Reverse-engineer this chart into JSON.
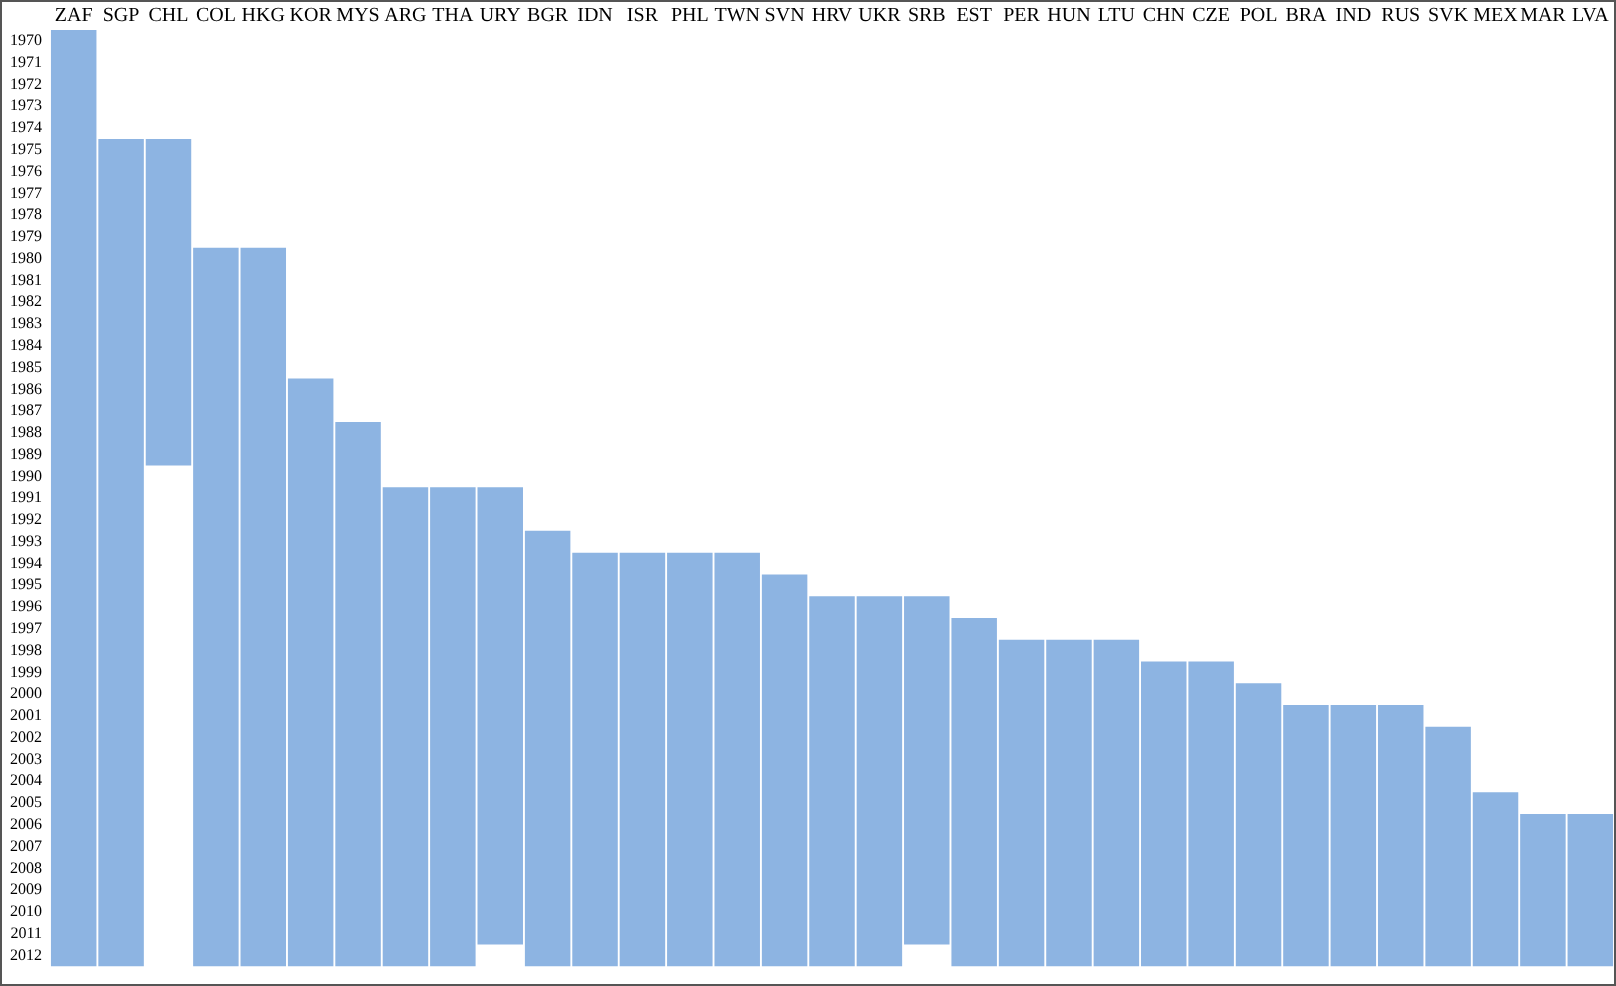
{
  "chart_data": {
    "type": "bar",
    "color": "#8db4e2",
    "grid": false,
    "legend": false,
    "categories": [
      "ZAF",
      "SGP",
      "CHL",
      "COL",
      "HKG",
      "KOR",
      "MYS",
      "ARG",
      "THA",
      "URY",
      "BGR",
      "IDN",
      "ISR",
      "PHL",
      "TWN",
      "SVN",
      "HRV",
      "UKR",
      "SRB",
      "EST",
      "PER",
      "HUN",
      "LTU",
      "CHN",
      "CZE",
      "POL",
      "BRA",
      "IND",
      "RUS",
      "SVK",
      "MEX",
      "MAR",
      "LVA"
    ],
    "base": [
      1969.5,
      1974.5,
      1974.5,
      1979.5,
      1979.5,
      1985.5,
      1987.5,
      1990.5,
      1990.5,
      1990.5,
      1992.5,
      1993.5,
      1993.5,
      1993.5,
      1993.5,
      1994.5,
      1995.5,
      1995.5,
      1995.5,
      1996.5,
      1997.5,
      1997.5,
      1997.5,
      1998.5,
      1998.5,
      1999.5,
      2000.5,
      2000.5,
      2000.5,
      2001.5,
      2004.5,
      2005.5,
      2005.5
    ],
    "values": [
      43,
      38,
      15,
      33,
      33,
      27,
      25,
      22,
      22,
      21,
      20,
      19,
      19,
      19,
      19,
      18,
      17,
      17,
      16,
      16,
      15,
      15,
      15,
      14,
      14,
      13,
      12,
      12,
      12,
      11,
      8,
      7,
      7
    ],
    "ylim": [
      2012.5,
      1969.5
    ],
    "yticks": [
      1970,
      1971,
      1972,
      1973,
      1974,
      1975,
      1976,
      1977,
      1978,
      1979,
      1980,
      1981,
      1982,
      1983,
      1984,
      1985,
      1986,
      1987,
      1988,
      1989,
      1990,
      1991,
      1992,
      1993,
      1994,
      1995,
      1996,
      1997,
      1998,
      1999,
      2000,
      2001,
      2002,
      2003,
      2004,
      2005,
      2006,
      2007,
      2008,
      2009,
      2010,
      2011,
      2012
    ]
  }
}
